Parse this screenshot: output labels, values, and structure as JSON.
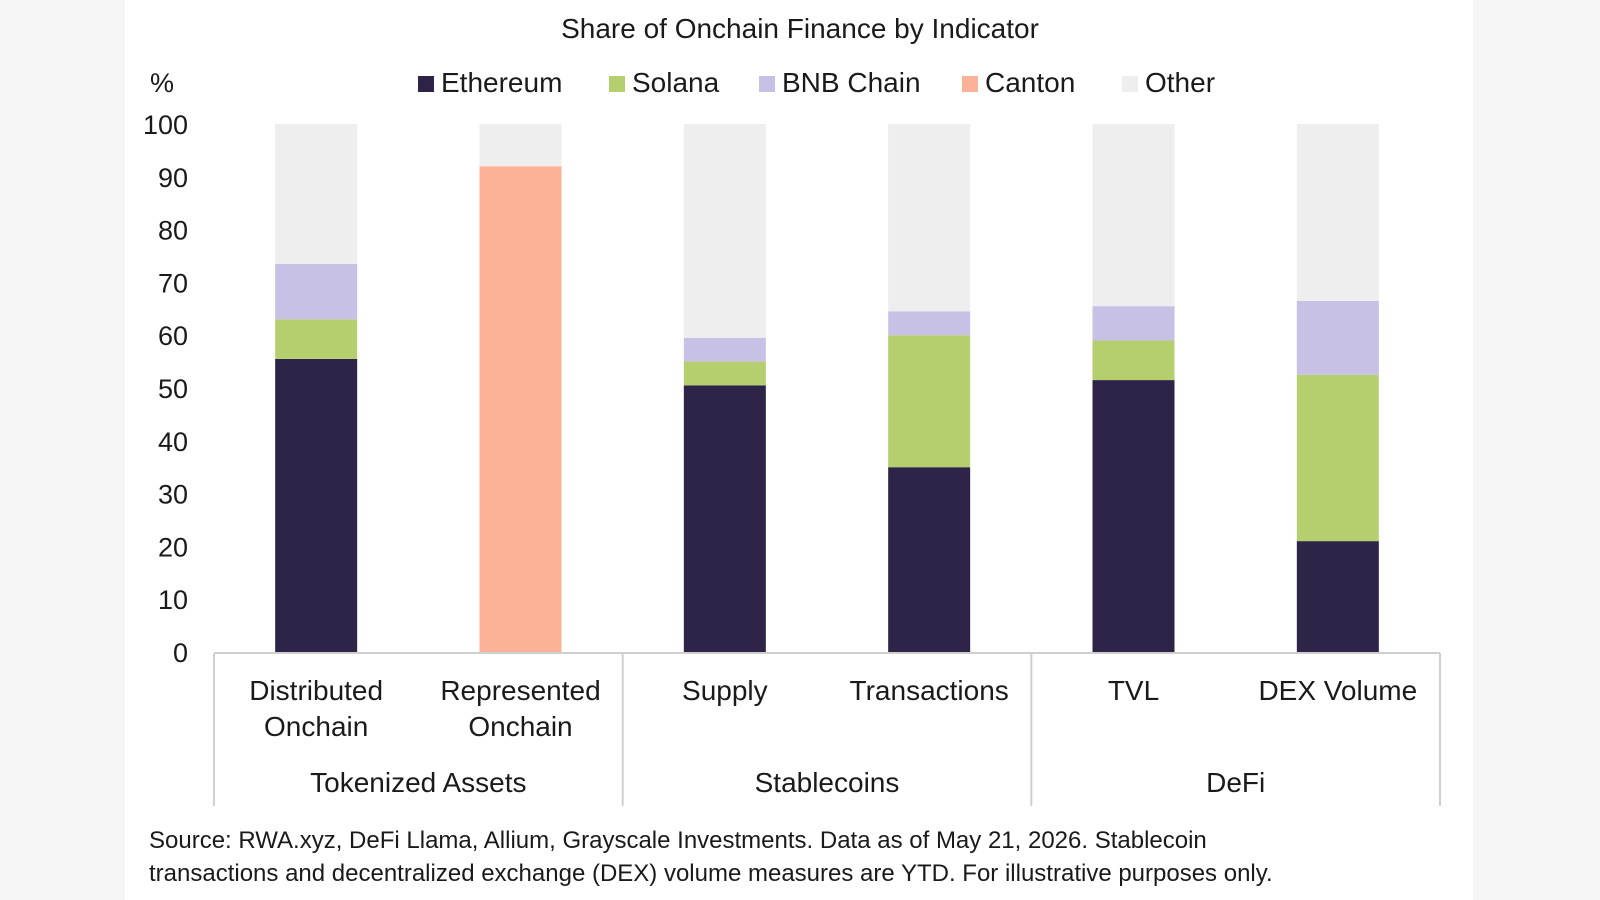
{
  "chart_data": {
    "type": "bar",
    "stacked": true,
    "title": "Share of Onchain Finance by Indicator",
    "ylabel": "%",
    "ylim": [
      0,
      100
    ],
    "yticks": [
      0,
      10,
      20,
      30,
      40,
      50,
      60,
      70,
      80,
      90,
      100
    ],
    "categories": [
      [
        "Distributed",
        "Onchain"
      ],
      [
        "Represented",
        "Onchain"
      ],
      [
        "Supply"
      ],
      [
        "Transactions"
      ],
      [
        "TVL"
      ],
      [
        "DEX Volume"
      ]
    ],
    "groups": [
      {
        "label": "Tokenized Assets",
        "span": 2
      },
      {
        "label": "Stablecoins",
        "span": 2
      },
      {
        "label": "DeFi",
        "span": 2
      }
    ],
    "series": [
      {
        "name": "Ethereum",
        "color": "#2d2447",
        "values": [
          55.5,
          0,
          50.5,
          35,
          51.5,
          21
        ]
      },
      {
        "name": "Solana",
        "color": "#b5cf6f",
        "values": [
          7.5,
          0,
          4.5,
          25,
          7.5,
          31.5
        ]
      },
      {
        "name": "BNB Chain",
        "color": "#c6c1e5",
        "values": [
          10.5,
          0,
          4.5,
          4.5,
          6.5,
          14
        ]
      },
      {
        "name": "Canton",
        "color": "#fcb297",
        "values": [
          0,
          92,
          0,
          0,
          0,
          0
        ]
      },
      {
        "name": "Other",
        "color": "#eeeeee",
        "values": [
          26.5,
          8,
          40.5,
          35.5,
          34.5,
          33.5
        ]
      }
    ],
    "legend_position": "top",
    "grid": false
  },
  "footer": {
    "source_lines": [
      "Source: RWA.xyz, DeFi Llama, Allium, Grayscale Investments. Data as of May 21, 2026. Stablecoin",
      "transactions and decentralized exchange (DEX) volume measures are YTD. For illustrative purposes only."
    ]
  }
}
